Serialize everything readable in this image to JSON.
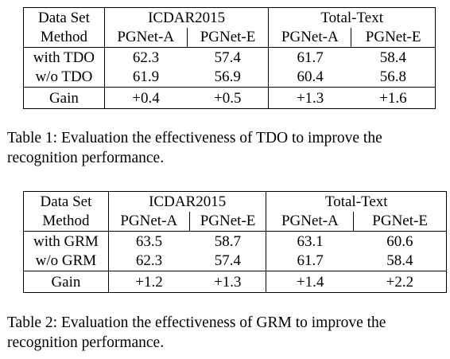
{
  "table1": {
    "header_row1": [
      "Data Set",
      "ICDAR2015",
      "Total-Text"
    ],
    "header_row2": [
      "Method",
      "PGNet-A",
      "PGNet-E",
      "PGNet-A",
      "PGNet-E"
    ],
    "rows": [
      [
        "with TDO",
        "62.3",
        "57.4",
        "61.7",
        "58.4"
      ],
      [
        "w/o TDO",
        "61.9",
        "56.9",
        "60.4",
        "56.8"
      ]
    ],
    "gain_row": [
      "Gain",
      "+0.4",
      "+0.5",
      "+1.3",
      "+1.6"
    ],
    "caption": "Table 1: Evaluation the effectiveness of TDO to improve the recognition performance."
  },
  "table2": {
    "header_row1": [
      "Data Set",
      "ICDAR2015",
      "Total-Text"
    ],
    "header_row2": [
      "Method",
      "PGNet-A",
      "PGNet-E",
      "PGNet-A",
      "PGNet-E"
    ],
    "rows": [
      [
        "with GRM",
        "63.5",
        "58.7",
        "63.1",
        "60.6"
      ],
      [
        "w/o GRM",
        "62.3",
        "57.4",
        "61.7",
        "58.4"
      ]
    ],
    "gain_row": [
      "Gain",
      "+1.2",
      "+1.3",
      "+1.4",
      "+2.2"
    ],
    "caption": "Table 2: Evaluation the effectiveness of GRM to improve the recognition performance."
  }
}
